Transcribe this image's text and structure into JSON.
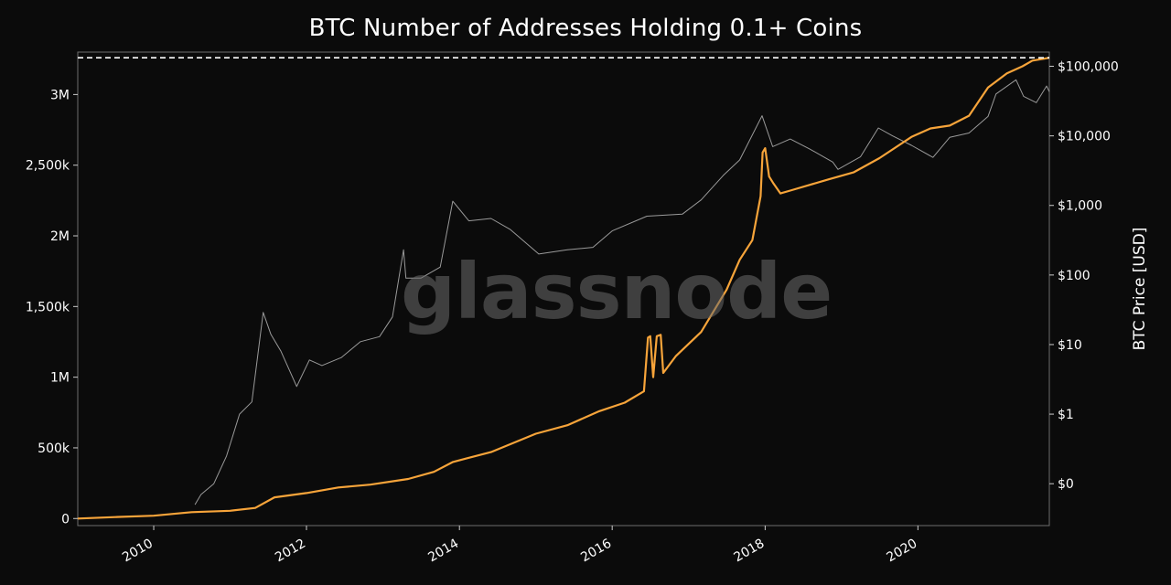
{
  "chart_data": {
    "type": "line",
    "title": "BTC Number of Addresses Holding 0.1+ Coins",
    "watermark": "glassnode",
    "xlabel": "",
    "ylabel": "",
    "y2label": "BTC Price [USD]",
    "x_ticks": [
      "2010",
      "2012",
      "2014",
      "2016",
      "2018",
      "2020"
    ],
    "y_ticks": [
      {
        "value": 0,
        "label": "0"
      },
      {
        "value": 500000,
        "label": "500k"
      },
      {
        "value": 1000000,
        "label": "1M"
      },
      {
        "value": 1500000,
        "label": "1,500k"
      },
      {
        "value": 2000000,
        "label": "2M"
      },
      {
        "value": 2500000,
        "label": "2,500k"
      },
      {
        "value": 3000000,
        "label": "3M"
      }
    ],
    "y2_ticks": [
      {
        "value": 0.1,
        "label": "$0"
      },
      {
        "value": 1,
        "label": "$1"
      },
      {
        "value": 10,
        "label": "$10"
      },
      {
        "value": 100,
        "label": "$100"
      },
      {
        "value": 1000,
        "label": "$1,000"
      },
      {
        "value": 10000,
        "label": "$10,000"
      },
      {
        "value": 100000,
        "label": "$100,000"
      }
    ],
    "xlim": [
      "2009-01-03",
      "2021-09-20"
    ],
    "ylim": [
      -50000,
      3300000
    ],
    "y2lim": [
      0.025,
      160000
    ],
    "y2_scale": "log",
    "grid": false,
    "reference_line": {
      "y": 3260000,
      "style": "dashed",
      "color": "#ffffff"
    },
    "series": [
      {
        "color": "#f7a43a",
        "axis": "left",
        "points": [
          [
            "2009-01-03",
            0
          ],
          [
            "2009-07-01",
            10000
          ],
          [
            "2010-01-01",
            20000
          ],
          [
            "2010-07-01",
            45000
          ],
          [
            "2011-01-01",
            55000
          ],
          [
            "2011-05-01",
            75000
          ],
          [
            "2011-08-01",
            150000
          ],
          [
            "2012-01-01",
            180000
          ],
          [
            "2012-06-01",
            220000
          ],
          [
            "2012-11-01",
            240000
          ],
          [
            "2013-05-01",
            280000
          ],
          [
            "2013-09-01",
            330000
          ],
          [
            "2013-12-01",
            400000
          ],
          [
            "2014-06-01",
            470000
          ],
          [
            "2015-01-01",
            600000
          ],
          [
            "2015-06-01",
            660000
          ],
          [
            "2015-11-01",
            760000
          ],
          [
            "2016-03-01",
            820000
          ],
          [
            "2016-06-01",
            900000
          ],
          [
            "2016-06-20",
            1280000
          ],
          [
            "2016-07-01",
            1290000
          ],
          [
            "2016-07-15",
            1000000
          ],
          [
            "2016-08-01",
            1290000
          ],
          [
            "2016-08-20",
            1300000
          ],
          [
            "2016-09-01",
            1030000
          ],
          [
            "2016-11-01",
            1150000
          ],
          [
            "2017-03-01",
            1320000
          ],
          [
            "2017-07-01",
            1620000
          ],
          [
            "2017-09-01",
            1830000
          ],
          [
            "2017-11-01",
            1970000
          ],
          [
            "2017-12-10",
            2280000
          ],
          [
            "2017-12-20",
            2590000
          ],
          [
            "2018-01-01",
            2620000
          ],
          [
            "2018-01-20",
            2420000
          ],
          [
            "2018-02-10",
            2370000
          ],
          [
            "2018-03-15",
            2300000
          ],
          [
            "2018-05-01",
            2320000
          ],
          [
            "2018-08-01",
            2360000
          ],
          [
            "2018-11-01",
            2400000
          ],
          [
            "2019-03-01",
            2450000
          ],
          [
            "2019-07-01",
            2550000
          ],
          [
            "2019-12-01",
            2700000
          ],
          [
            "2020-03-01",
            2760000
          ],
          [
            "2020-06-01",
            2780000
          ],
          [
            "2020-09-01",
            2850000
          ],
          [
            "2020-12-01",
            3050000
          ],
          [
            "2021-03-01",
            3150000
          ],
          [
            "2021-05-15",
            3200000
          ],
          [
            "2021-07-01",
            3240000
          ],
          [
            "2021-09-20",
            3260000
          ]
        ]
      },
      {
        "color": "#9a9a9a",
        "axis": "right",
        "points": [
          [
            "2010-07-17",
            0.05
          ],
          [
            "2010-08-15",
            0.07
          ],
          [
            "2010-10-15",
            0.1
          ],
          [
            "2010-12-15",
            0.25
          ],
          [
            "2011-02-15",
            1.0
          ],
          [
            "2011-04-15",
            1.5
          ],
          [
            "2011-06-08",
            29
          ],
          [
            "2011-07-15",
            14
          ],
          [
            "2011-09-01",
            8
          ],
          [
            "2011-11-15",
            2.5
          ],
          [
            "2012-01-15",
            6
          ],
          [
            "2012-03-15",
            5
          ],
          [
            "2012-06-15",
            6.5
          ],
          [
            "2012-09-15",
            11
          ],
          [
            "2012-12-15",
            13
          ],
          [
            "2013-02-15",
            25
          ],
          [
            "2013-04-09",
            230
          ],
          [
            "2013-04-20",
            90
          ],
          [
            "2013-07-01",
            90
          ],
          [
            "2013-10-01",
            130
          ],
          [
            "2013-11-30",
            1150
          ],
          [
            "2014-02-15",
            600
          ],
          [
            "2014-06-01",
            650
          ],
          [
            "2014-09-01",
            450
          ],
          [
            "2015-01-15",
            200
          ],
          [
            "2015-06-01",
            230
          ],
          [
            "2015-10-01",
            250
          ],
          [
            "2016-01-01",
            430
          ],
          [
            "2016-06-15",
            700
          ],
          [
            "2016-12-01",
            750
          ],
          [
            "2017-03-01",
            1200
          ],
          [
            "2017-06-15",
            2700
          ],
          [
            "2017-09-01",
            4500
          ],
          [
            "2017-12-17",
            19500
          ],
          [
            "2018-02-06",
            7000
          ],
          [
            "2018-05-01",
            9000
          ],
          [
            "2018-08-01",
            6500
          ],
          [
            "2018-11-20",
            4200
          ],
          [
            "2018-12-15",
            3300
          ],
          [
            "2019-04-01",
            5000
          ],
          [
            "2019-06-26",
            13000
          ],
          [
            "2019-09-01",
            10000
          ],
          [
            "2019-12-01",
            7300
          ],
          [
            "2020-03-13",
            4900
          ],
          [
            "2020-06-01",
            9500
          ],
          [
            "2020-09-01",
            11000
          ],
          [
            "2020-12-01",
            19000
          ],
          [
            "2021-01-08",
            40000
          ],
          [
            "2021-04-14",
            64000
          ],
          [
            "2021-05-20",
            37000
          ],
          [
            "2021-07-20",
            30000
          ],
          [
            "2021-09-07",
            52000
          ],
          [
            "2021-09-20",
            43000
          ]
        ]
      }
    ]
  }
}
